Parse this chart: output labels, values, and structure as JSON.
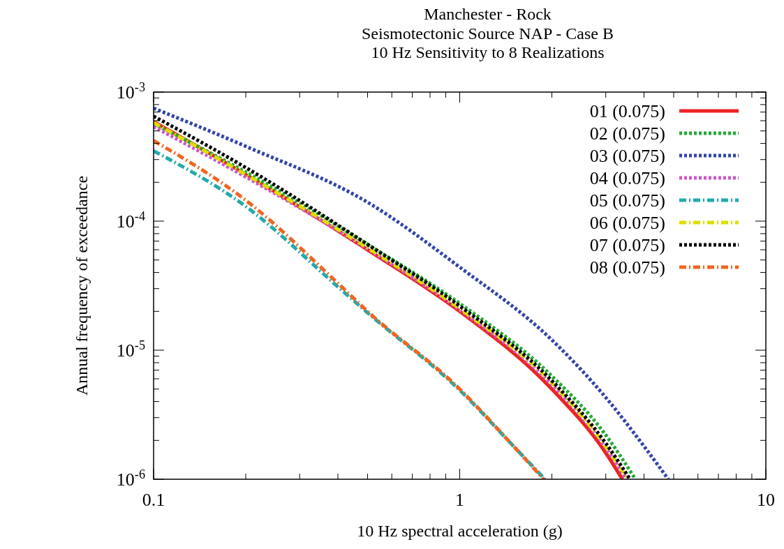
{
  "chart_data": {
    "type": "line",
    "title": "Manchester - Rock",
    "subtitle": "Seismotectonic Source NAP - Case B\n10 Hz Sensitivity to 8 Realizations",
    "xlabel": "10 Hz spectral acceleration (g)",
    "ylabel": "Annual frequency of exceedance",
    "log": "xy",
    "grid": false,
    "legend": "top right",
    "xlim": [
      0.1,
      10
    ],
    "ylim": [
      1e-06,
      0.001
    ],
    "xticks": [
      {
        "value": 0.1,
        "label": "0.1"
      },
      {
        "value": 0.2,
        "label": null
      },
      {
        "value": 0.3,
        "label": null
      },
      {
        "value": 0.4,
        "label": null
      },
      {
        "value": 0.5,
        "label": null
      },
      {
        "value": 0.6,
        "label": null
      },
      {
        "value": 0.7,
        "label": null
      },
      {
        "value": 0.8,
        "label": null
      },
      {
        "value": 0.9,
        "label": null
      },
      {
        "value": 1,
        "label": "1"
      },
      {
        "value": 2,
        "label": null
      },
      {
        "value": 3,
        "label": null
      },
      {
        "value": 4,
        "label": null
      },
      {
        "value": 5,
        "label": null
      },
      {
        "value": 6,
        "label": null
      },
      {
        "value": 7,
        "label": null
      },
      {
        "value": 8,
        "label": null
      },
      {
        "value": 9,
        "label": null
      },
      {
        "value": 10,
        "label": "10"
      }
    ],
    "yticks": [
      {
        "value": 1e-06,
        "label": "10$^{-6}$"
      },
      {
        "value": 2e-06,
        "label": null
      },
      {
        "value": 3e-06,
        "label": null
      },
      {
        "value": 4e-06,
        "label": null
      },
      {
        "value": 5e-06,
        "label": null
      },
      {
        "value": 6e-06,
        "label": null
      },
      {
        "value": 7e-06,
        "label": null
      },
      {
        "value": 8e-06,
        "label": null
      },
      {
        "value": 9e-06,
        "label": null
      },
      {
        "value": 1e-05,
        "label": "10$^{-5}$"
      },
      {
        "value": 2e-05,
        "label": null
      },
      {
        "value": 3e-05,
        "label": null
      },
      {
        "value": 4e-05,
        "label": null
      },
      {
        "value": 5e-05,
        "label": null
      },
      {
        "value": 6e-05,
        "label": null
      },
      {
        "value": 7e-05,
        "label": null
      },
      {
        "value": 8e-05,
        "label": null
      },
      {
        "value": 9e-05,
        "label": null
      },
      {
        "value": 0.0001,
        "label": "10$^{-4}$"
      },
      {
        "value": 0.0002,
        "label": null
      },
      {
        "value": 0.0003,
        "label": null
      },
      {
        "value": 0.0004,
        "label": null
      },
      {
        "value": 0.0005,
        "label": null
      },
      {
        "value": 0.0006,
        "label": null
      },
      {
        "value": 0.0007,
        "label": null
      },
      {
        "value": 0.0008,
        "label": null
      },
      {
        "value": 0.0009,
        "label": null
      },
      {
        "value": 0.001,
        "label": "10$^{-3}$"
      }
    ],
    "series": [
      {
        "name": "01 (0.075)",
        "color": "#ee2222",
        "line_style": "solid",
        "x": [
          0.1,
          0.2,
          0.5,
          1,
          2,
          3,
          3.4
        ],
        "values": [
          0.00059,
          0.00023,
          6e-05,
          2e-05,
          5e-06,
          1.6e-06,
          1e-06
        ]
      },
      {
        "name": "02 (0.075)",
        "color": "#22aa33",
        "line_style": "dotted",
        "x": [
          0.1,
          0.2,
          0.5,
          1,
          2,
          3,
          3.75
        ],
        "values": [
          0.00057,
          0.00024,
          6.6e-05,
          2.3e-05,
          6.3e-06,
          2.2e-06,
          1e-06
        ]
      },
      {
        "name": "03 (0.075)",
        "color": "#3344aa",
        "line_style": "dotted",
        "x": [
          0.1,
          0.2,
          0.5,
          1,
          2,
          3,
          4,
          4.8
        ],
        "values": [
          0.00075,
          0.00038,
          0.00014,
          4.4e-05,
          1.2e-05,
          4.3e-06,
          1.8e-06,
          1e-06
        ]
      },
      {
        "name": "04 (0.075)",
        "color": "#cc55cc",
        "line_style": "dotted",
        "x": [
          0.1,
          0.2,
          0.5,
          1,
          2,
          3,
          3.5
        ],
        "values": [
          0.00054,
          0.00022,
          6.1e-05,
          2.05e-05,
          5.4e-06,
          1.75e-06,
          1e-06
        ]
      },
      {
        "name": "05 (0.075)",
        "color": "#22aaaa",
        "line_style": "dashed",
        "x": [
          0.1,
          0.2,
          0.4,
          0.5,
          1,
          1.5,
          1.9
        ],
        "values": [
          0.00035,
          0.00013,
          3.1e-05,
          1.95e-05,
          4.9e-06,
          1.8e-06,
          1e-06
        ]
      },
      {
        "name": "06 (0.075)",
        "color": "#dddd00",
        "line_style": "dashed",
        "x": [
          0.1,
          0.2,
          0.5,
          1,
          2,
          3,
          3.55
        ],
        "values": [
          0.00058,
          0.00023,
          6.2e-05,
          2.1e-05,
          5.6e-06,
          1.8e-06,
          1e-06
        ]
      },
      {
        "name": "07 (0.075)",
        "color": "#000000",
        "line_style": "dotted",
        "x": [
          0.1,
          0.2,
          0.5,
          1,
          2,
          3,
          3.6
        ],
        "values": [
          0.00065,
          0.00026,
          6.6e-05,
          2.2e-05,
          5.8e-06,
          1.9e-06,
          1e-06
        ]
      },
      {
        "name": "08 (0.075)",
        "color": "#ee6622",
        "line_style": "dashed",
        "x": [
          0.1,
          0.2,
          0.4,
          0.5,
          1,
          1.5,
          1.88
        ],
        "values": [
          0.00042,
          0.000145,
          3.3e-05,
          2e-05,
          5e-06,
          1.8e-06,
          1e-06
        ]
      }
    ]
  }
}
